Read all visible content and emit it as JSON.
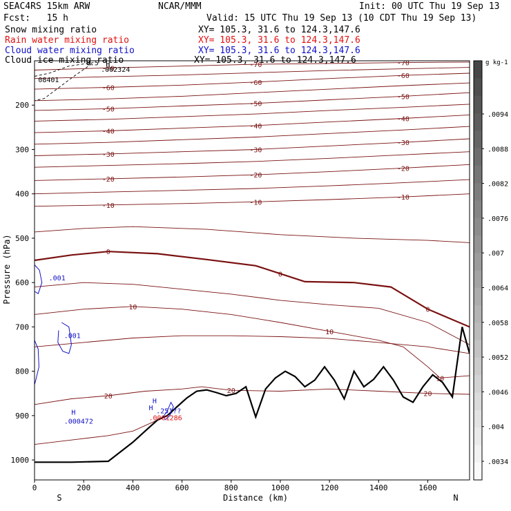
{
  "header": {
    "model": "SEAC4RS 15km ARW",
    "org": "NCAR/MMM",
    "init": "Init: 00 UTC Thu 19 Sep 13",
    "fcst": "Fcst:   15 h",
    "valid": "Valid: 15 UTC Thu 19 Sep 13 (10 CDT Thu 19 Sep 13)"
  },
  "fields": [
    {
      "name": "Snow mixing ratio",
      "xy": "XY= 105.3, 31.6 to 124.3,147.6",
      "color": "#000000"
    },
    {
      "name": "Rain water mixing ratio",
      "xy": "XY= 105.3, 31.6 to 124.3,147.6",
      "color": "#e01010"
    },
    {
      "name": "Cloud water mixing ratio",
      "xy": "XY= 105.3, 31.6 to 124.3,147.6",
      "color": "#1010c8"
    },
    {
      "name": "Cloud ice mixing ratio",
      "xy": "XY= 105.3, 31.6 to 124.3,147.6",
      "color": "#000000"
    }
  ],
  "chart_data": {
    "type": "contour-cross-section",
    "xlabel": "Distance (km)",
    "ylabel": "Pressure (hPa)",
    "xlim": [
      0,
      1770
    ],
    "ylim": [
      100,
      1045
    ],
    "x_ticks": [
      0,
      200,
      400,
      600,
      800,
      1000,
      1200,
      1400,
      1600
    ],
    "y_ticks": [
      200,
      300,
      400,
      500,
      600,
      700,
      800,
      900,
      1000
    ],
    "x_end_labels": {
      "left": "S",
      "right": "N"
    },
    "temperature_isotherms_color": "#7a1010",
    "temperature_isotherms": [
      {
        "t": -70,
        "label": "-70",
        "pts": [
          [
            0,
            121
          ],
          [
            300,
            116
          ],
          [
            600,
            112
          ],
          [
            900,
            108
          ],
          [
            1200,
            106
          ],
          [
            1500,
            104
          ],
          [
            1770,
            103
          ]
        ]
      },
      {
        "t": -65,
        "label": "",
        "pts": [
          [
            0,
            140
          ],
          [
            300,
            136
          ],
          [
            600,
            132
          ],
          [
            900,
            127
          ],
          [
            1200,
            122
          ],
          [
            1500,
            118
          ],
          [
            1770,
            115
          ]
        ]
      },
      {
        "t": -60,
        "label": "-60",
        "pts": [
          [
            0,
            164
          ],
          [
            300,
            160
          ],
          [
            600,
            155
          ],
          [
            900,
            148
          ],
          [
            1200,
            140
          ],
          [
            1500,
            133
          ],
          [
            1770,
            128
          ]
        ]
      },
      {
        "t": -55,
        "label": "",
        "pts": [
          [
            0,
            190
          ],
          [
            300,
            186
          ],
          [
            600,
            180
          ],
          [
            900,
            172
          ],
          [
            1200,
            164
          ],
          [
            1500,
            156
          ],
          [
            1770,
            150
          ]
        ]
      },
      {
        "t": -50,
        "label": "-50",
        "pts": [
          [
            0,
            212
          ],
          [
            300,
            208
          ],
          [
            600,
            202
          ],
          [
            900,
            196
          ],
          [
            1200,
            188
          ],
          [
            1500,
            180
          ],
          [
            1770,
            172
          ]
        ]
      },
      {
        "t": -45,
        "label": "",
        "pts": [
          [
            0,
            236
          ],
          [
            300,
            232
          ],
          [
            600,
            226
          ],
          [
            900,
            220
          ],
          [
            1200,
            212
          ],
          [
            1500,
            205
          ],
          [
            1770,
            198
          ]
        ]
      },
      {
        "t": -40,
        "label": "-40",
        "pts": [
          [
            0,
            262
          ],
          [
            300,
            258
          ],
          [
            600,
            252
          ],
          [
            900,
            246
          ],
          [
            1200,
            238
          ],
          [
            1500,
            230
          ],
          [
            1770,
            222
          ]
        ]
      },
      {
        "t": -35,
        "label": "",
        "pts": [
          [
            0,
            288
          ],
          [
            300,
            284
          ],
          [
            600,
            278
          ],
          [
            900,
            272
          ],
          [
            1200,
            264
          ],
          [
            1500,
            256
          ],
          [
            1770,
            248
          ]
        ]
      },
      {
        "t": -30,
        "label": "-30",
        "pts": [
          [
            0,
            314
          ],
          [
            300,
            310
          ],
          [
            600,
            305
          ],
          [
            900,
            300
          ],
          [
            1200,
            292
          ],
          [
            1500,
            284
          ],
          [
            1770,
            276
          ]
        ]
      },
      {
        "t": -25,
        "label": "",
        "pts": [
          [
            0,
            340
          ],
          [
            300,
            336
          ],
          [
            600,
            332
          ],
          [
            900,
            327
          ],
          [
            1200,
            320
          ],
          [
            1500,
            312
          ],
          [
            1770,
            305
          ]
        ]
      },
      {
        "t": -20,
        "label": "-20",
        "pts": [
          [
            0,
            370
          ],
          [
            300,
            366
          ],
          [
            600,
            362
          ],
          [
            900,
            357
          ],
          [
            1200,
            350
          ],
          [
            1500,
            342
          ],
          [
            1770,
            334
          ]
        ]
      },
      {
        "t": -15,
        "label": "",
        "pts": [
          [
            0,
            400
          ],
          [
            300,
            396
          ],
          [
            600,
            392
          ],
          [
            900,
            388
          ],
          [
            1200,
            382
          ],
          [
            1500,
            375
          ],
          [
            1770,
            368
          ]
        ]
      },
      {
        "t": -10,
        "label": "-10",
        "pts": [
          [
            0,
            428
          ],
          [
            300,
            425
          ],
          [
            600,
            422
          ],
          [
            900,
            418
          ],
          [
            1200,
            413
          ],
          [
            1500,
            407
          ],
          [
            1770,
            400
          ]
        ]
      },
      {
        "t": -5,
        "label": "",
        "pts": [
          [
            0,
            486
          ],
          [
            200,
            478
          ],
          [
            400,
            474
          ],
          [
            700,
            480
          ],
          [
            1000,
            492
          ],
          [
            1300,
            500
          ],
          [
            1600,
            505
          ],
          [
            1770,
            510
          ]
        ]
      },
      {
        "t": 0,
        "label": "0",
        "pts": [
          [
            0,
            550
          ],
          [
            150,
            538
          ],
          [
            300,
            530
          ],
          [
            500,
            535
          ],
          [
            700,
            548
          ],
          [
            900,
            562
          ],
          [
            1000,
            580
          ],
          [
            1100,
            598
          ],
          [
            1300,
            600
          ],
          [
            1450,
            610
          ],
          [
            1600,
            660
          ],
          [
            1770,
            700
          ]
        ]
      },
      {
        "t": 5,
        "label": "",
        "pts": [
          [
            0,
            610
          ],
          [
            200,
            600
          ],
          [
            400,
            604
          ],
          [
            600,
            615
          ],
          [
            800,
            626
          ],
          [
            1000,
            640
          ],
          [
            1200,
            650
          ],
          [
            1400,
            658
          ],
          [
            1600,
            690
          ],
          [
            1770,
            740
          ]
        ]
      },
      {
        "t": 10,
        "label": "10",
        "pts": [
          [
            0,
            672
          ],
          [
            200,
            660
          ],
          [
            400,
            654
          ],
          [
            600,
            660
          ],
          [
            800,
            672
          ],
          [
            1000,
            690
          ],
          [
            1200,
            710
          ],
          [
            1400,
            730
          ],
          [
            1500,
            745
          ],
          [
            1600,
            790
          ],
          [
            1650,
            815
          ],
          [
            1770,
            810
          ]
        ]
      },
      {
        "t": 15,
        "label": "",
        "pts": [
          [
            0,
            745
          ],
          [
            200,
            735
          ],
          [
            400,
            725
          ],
          [
            600,
            720
          ],
          [
            800,
            720
          ],
          [
            1000,
            722
          ],
          [
            1200,
            726
          ],
          [
            1400,
            735
          ],
          [
            1600,
            745
          ],
          [
            1770,
            760
          ]
        ]
      },
      {
        "t": 20,
        "label": "20",
        "pts": [
          [
            0,
            875
          ],
          [
            150,
            862
          ],
          [
            300,
            855
          ],
          [
            450,
            845
          ],
          [
            600,
            840
          ],
          [
            680,
            835
          ],
          [
            800,
            843
          ],
          [
            1000,
            845
          ],
          [
            1200,
            840
          ],
          [
            1400,
            845
          ],
          [
            1600,
            850
          ],
          [
            1770,
            852
          ]
        ]
      },
      {
        "t": 25,
        "label": "",
        "pts": [
          [
            0,
            965
          ],
          [
            150,
            955
          ],
          [
            300,
            945
          ],
          [
            400,
            935
          ],
          [
            500,
            910
          ]
        ]
      }
    ],
    "terrain": [
      [
        0,
        1005
      ],
      [
        150,
        1005
      ],
      [
        300,
        1003
      ],
      [
        400,
        960
      ],
      [
        460,
        930
      ],
      [
        500,
        910
      ],
      [
        540,
        900
      ],
      [
        580,
        880
      ],
      [
        620,
        860
      ],
      [
        660,
        845
      ],
      [
        700,
        842
      ],
      [
        740,
        848
      ],
      [
        780,
        855
      ],
      [
        820,
        850
      ],
      [
        860,
        835
      ],
      [
        900,
        903
      ],
      [
        940,
        840
      ],
      [
        980,
        815
      ],
      [
        1020,
        800
      ],
      [
        1060,
        812
      ],
      [
        1100,
        835
      ],
      [
        1140,
        820
      ],
      [
        1180,
        790
      ],
      [
        1220,
        820
      ],
      [
        1260,
        862
      ],
      [
        1300,
        800
      ],
      [
        1340,
        835
      ],
      [
        1380,
        818
      ],
      [
        1420,
        790
      ],
      [
        1460,
        820
      ],
      [
        1500,
        858
      ],
      [
        1540,
        870
      ],
      [
        1580,
        835
      ],
      [
        1620,
        808
      ],
      [
        1660,
        825
      ],
      [
        1700,
        858
      ],
      [
        1740,
        700
      ],
      [
        1760,
        740
      ],
      [
        1770,
        760
      ]
    ],
    "cloud_water_contours": [
      {
        "level": 0.001,
        "pts": [
          [
            0,
            560
          ],
          [
            20,
            572
          ],
          [
            30,
            600
          ],
          [
            15,
            625
          ],
          [
            0,
            620
          ]
        ]
      },
      {
        "level": 0.001,
        "pts": [
          [
            110,
            690
          ],
          [
            140,
            700
          ],
          [
            150,
            740
          ],
          [
            140,
            760
          ],
          [
            115,
            755
          ],
          [
            95,
            735
          ],
          [
            98,
            708
          ]
        ]
      },
      {
        "level": 0.001,
        "pts": [
          [
            0,
            730
          ],
          [
            15,
            750
          ],
          [
            18,
            790
          ],
          [
            5,
            820
          ],
          [
            0,
            830
          ]
        ]
      },
      {
        "level": 0.001,
        "pts": [
          [
            520,
            905
          ],
          [
            540,
            890
          ],
          [
            555,
            870
          ],
          [
            565,
            880
          ],
          [
            550,
            900
          ],
          [
            530,
            910
          ]
        ]
      }
    ],
    "cloud_water_labels": [
      {
        "text": ".001",
        "x": 58,
        "p": 595
      },
      {
        "text": ".001",
        "x": 120,
        "p": 725
      },
      {
        "text": "H",
        "x": 150,
        "p": 898
      },
      {
        "text": ".000472",
        "x": 120,
        "p": 918
      },
      {
        "text": "H",
        "x": 480,
        "p": 872
      },
      {
        "text": "H",
        "x": 465,
        "p": 888
      },
      {
        "text": ".251??",
        "x": 495,
        "p": 895
      }
    ],
    "rain_labels": [
      {
        "text": ".0001286",
        "x": 465,
        "p": 910
      }
    ],
    "snow_contours": [
      {
        "level": 0.0005,
        "pts": [
          [
            0,
            135
          ],
          [
            60,
            128
          ],
          [
            140,
            112
          ],
          [
            240,
            104
          ],
          [
            220,
            112
          ],
          [
            160,
            135
          ],
          [
            100,
            160
          ],
          [
            40,
            185
          ],
          [
            0,
            190
          ]
        ]
      }
    ],
    "snow_labels": [
      {
        "text": "0.5",
        "x": 210,
        "p": 110
      },
      {
        "text": "H",
        "x": 290,
        "p": 113
      },
      {
        "text": ".002324",
        "x": 270,
        "p": 125
      },
      {
        "text": "08401",
        "x": 15,
        "p": 148
      }
    ],
    "colorbar": {
      "unit": "g kg-1",
      "ticks": [
        ".0094",
        ".0088",
        ".0082",
        ".0076",
        ".007",
        ".0064",
        ".0058",
        ".0052",
        ".0046",
        ".004",
        ".0034"
      ]
    }
  }
}
